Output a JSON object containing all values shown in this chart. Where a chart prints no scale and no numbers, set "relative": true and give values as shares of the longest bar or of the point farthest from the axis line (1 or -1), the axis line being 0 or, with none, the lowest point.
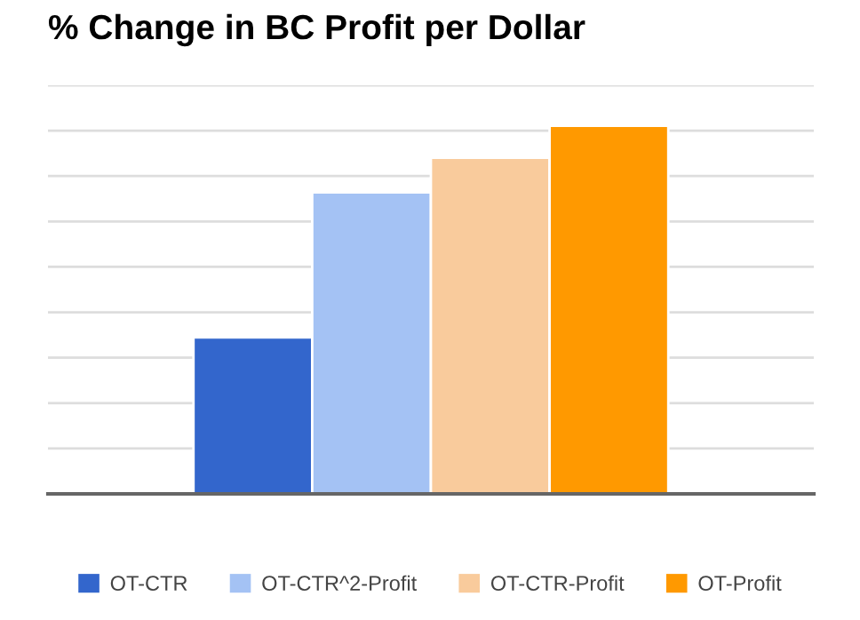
{
  "chart_data": {
    "type": "bar",
    "title": "% Change in BC Profit per Dollar",
    "relative": true,
    "categories": [
      null
    ],
    "series": [
      {
        "name": "OT-CTR",
        "color": "#3366cc",
        "values": [
          0.425
        ]
      },
      {
        "name": "OT-CTR^2-Profit",
        "color": "#a4c2f4",
        "values": [
          0.819
        ]
      },
      {
        "name": "OT-CTR-Profit",
        "color": "#f9cb9c",
        "values": [
          0.913
        ]
      },
      {
        "name": "OT-Profit",
        "color": "#ff9900",
        "values": [
          1
        ]
      }
    ],
    "grid": "y",
    "legend": "bottom"
  }
}
